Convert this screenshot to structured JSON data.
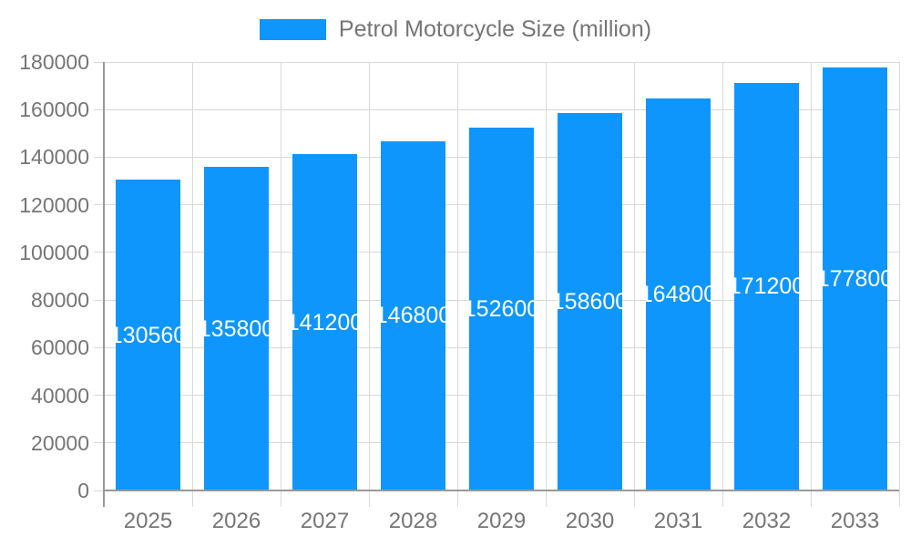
{
  "chart_data": {
    "type": "bar",
    "title": "",
    "legend": "Petrol Motorcycle Size (million)",
    "legend_position": "top-center",
    "categories": [
      "2025",
      "2026",
      "2027",
      "2028",
      "2029",
      "2030",
      "2031",
      "2032",
      "2033"
    ],
    "series": [
      {
        "name": "Petrol Motorcycle Size (million)",
        "values": [
          130560,
          135800,
          141200,
          146800,
          152600,
          158600,
          164800,
          171200,
          177800
        ]
      }
    ],
    "bar_value_labels": [
      "130560",
      "135800",
      "141200",
      "146800",
      "152600",
      "158600",
      "164800",
      "171200",
      "177800"
    ],
    "ylim": [
      0,
      180000
    ],
    "ytick_step": 20000,
    "ytick_labels": [
      "0",
      "20000",
      "40000",
      "60000",
      "80000",
      "100000",
      "120000",
      "140000",
      "160000",
      "180000"
    ],
    "grid": true,
    "colors": {
      "bar": "#0f96fc",
      "bar_value_text": "#ffffff",
      "axis_text": "#757575",
      "legend_text": "#757575",
      "gridline": "#d9d9d9",
      "axis_line": "#999999"
    }
  }
}
